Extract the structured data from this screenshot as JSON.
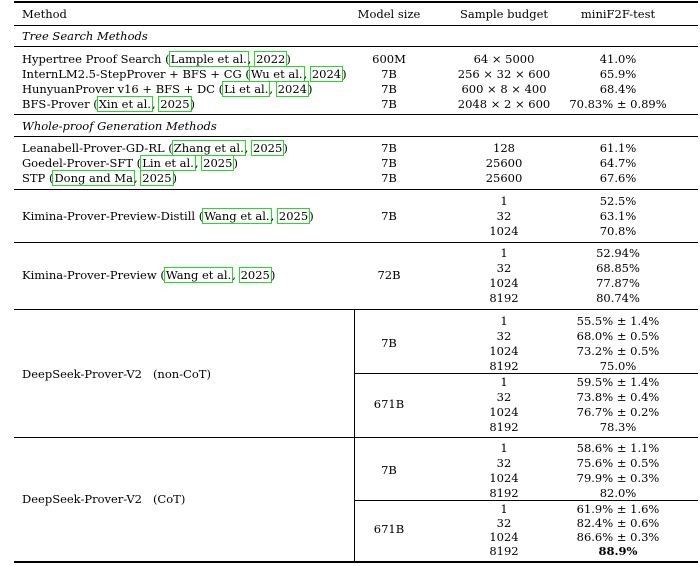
{
  "header": {
    "method": "Method",
    "model_size": "Model size",
    "sample_budget": "Sample budget",
    "minif2f": "miniF2F-test"
  },
  "sections": [
    {
      "title": "Tree Search Methods",
      "rows": [
        {
          "name": "Hypertree Proof Search",
          "cites": [
            "Lample et al.",
            "2022"
          ],
          "size": "600M",
          "budget": "64 × 5000",
          "score": "41.0%"
        },
        {
          "name": "InternLM2.5-StepProver + BFS + CG",
          "cites": [
            "Wu et al.",
            "2024"
          ],
          "size": "7B",
          "budget": "256 × 32 × 600",
          "score": "65.9%"
        },
        {
          "name": "HunyuanProver v16 + BFS + DC",
          "cites": [
            "Li et al.",
            "2024"
          ],
          "size": "7B",
          "budget": "600 × 8 × 400",
          "score": "68.4%"
        },
        {
          "name": "BFS-Prover",
          "cites": [
            "Xin et al.",
            "2025"
          ],
          "size": "7B",
          "budget": "2048 × 2 × 600",
          "score": "70.83% ± 0.89%"
        }
      ]
    },
    {
      "title": "Whole-proof Generation Methods",
      "rows": [
        {
          "name": "Leanabell-Prover-GD-RL",
          "cites": [
            "Zhang et al.",
            "2025"
          ],
          "size": "7B",
          "budget": "128",
          "score": "61.1%"
        },
        {
          "name": "Goedel-Prover-SFT",
          "cites": [
            "Lin et al.",
            "2025"
          ],
          "size": "7B",
          "budget": "25600",
          "score": "64.7%"
        },
        {
          "name": "STP",
          "cites": [
            "Dong and Ma",
            "2025"
          ],
          "size": "7B",
          "budget": "25600",
          "score": "67.6%"
        }
      ]
    }
  ],
  "groups": [
    {
      "name": "Kimina-Prover-Preview-Distill",
      "cites": [
        "Wang et al.",
        "2025"
      ],
      "size": "7B",
      "budgets": [
        "1",
        "32",
        "1024"
      ],
      "scores": [
        "52.5%",
        "63.1%",
        "70.8%"
      ]
    },
    {
      "name": "Kimina-Prover-Preview",
      "cites": [
        "Wang et al.",
        "2025"
      ],
      "size": "72B",
      "budgets": [
        "1",
        "32",
        "1024",
        "8192"
      ],
      "scores": [
        "52.94%",
        "68.85%",
        "77.87%",
        "80.74%"
      ]
    },
    {
      "name": "DeepSeek-Prover-V2",
      "suffix": "(non-CoT)",
      "subgroups": [
        {
          "size": "7B",
          "budgets": [
            "1",
            "32",
            "1024",
            "8192"
          ],
          "scores": [
            "55.5% ± 1.4%",
            "68.0% ± 0.5%",
            "73.2% ± 0.5%",
            "75.0%"
          ]
        },
        {
          "size": "671B",
          "budgets": [
            "1",
            "32",
            "1024",
            "8192"
          ],
          "scores": [
            "59.5% ± 1.4%",
            "73.8% ± 0.4%",
            "76.7% ± 0.2%",
            "78.3%"
          ]
        }
      ]
    },
    {
      "name": "DeepSeek-Prover-V2",
      "suffix": "(CoT)",
      "subgroups": [
        {
          "size": "7B",
          "budgets": [
            "1",
            "32",
            "1024",
            "8192"
          ],
          "scores": [
            "58.6% ± 1.1%",
            "75.6% ± 0.5%",
            "79.9% ± 0.3%",
            "82.0%"
          ]
        },
        {
          "size": "671B",
          "budgets": [
            "1",
            "32",
            "1024",
            "8192"
          ],
          "scores": [
            "61.9% ± 1.6%",
            "82.4% ± 0.6%",
            "86.6% ± 0.3%",
            "88.9%"
          ]
        }
      ]
    }
  ]
}
